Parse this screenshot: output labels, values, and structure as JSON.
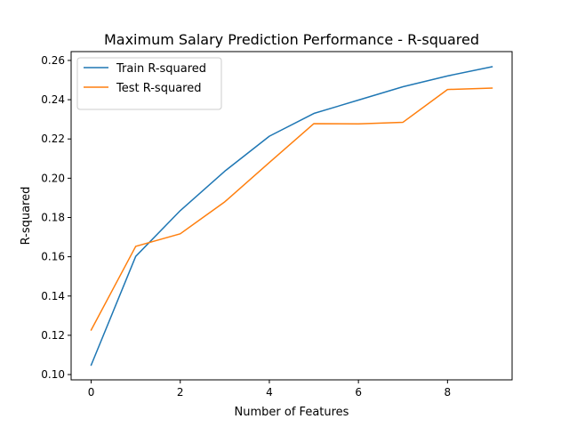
{
  "chart_data": {
    "type": "line",
    "title": "Maximum Salary Prediction Performance - R-squared",
    "xlabel": "Number of Features",
    "ylabel": "R-squared",
    "x": [
      0,
      1,
      2,
      3,
      4,
      5,
      6,
      7,
      8,
      9
    ],
    "xlim": [
      -0.45,
      9.45
    ],
    "ylim": [
      0.0973,
      0.2645
    ],
    "xticks": [
      0,
      2,
      4,
      6,
      8
    ],
    "yticks": [
      0.1,
      0.12,
      0.14,
      0.16,
      0.18,
      0.2,
      0.22,
      0.24,
      0.26
    ],
    "xtick_labels": [
      "0",
      "2",
      "4",
      "6",
      "8"
    ],
    "ytick_labels": [
      "0.10",
      "0.12",
      "0.14",
      "0.16",
      "0.18",
      "0.20",
      "0.22",
      "0.24",
      "0.26"
    ],
    "grid": false,
    "legend_position": "top-left",
    "series": [
      {
        "name": "Train R-squared",
        "color": "#1f77b4",
        "values": [
          0.1048,
          0.1602,
          0.1835,
          0.2036,
          0.2214,
          0.233,
          0.2398,
          0.2466,
          0.2521,
          0.2568
        ]
      },
      {
        "name": "Test R-squared",
        "color": "#ff7f0e",
        "values": [
          0.1227,
          0.1653,
          0.1717,
          0.188,
          0.208,
          0.2278,
          0.2277,
          0.2285,
          0.2452,
          0.2459
        ]
      }
    ]
  }
}
